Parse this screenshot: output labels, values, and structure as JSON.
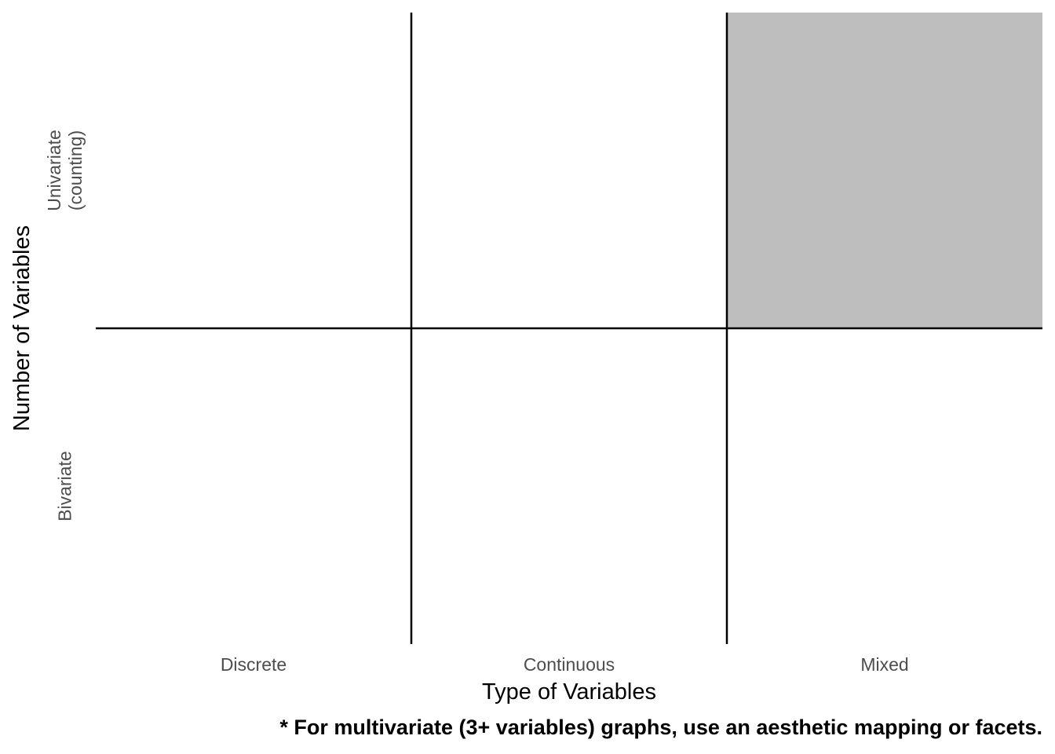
{
  "chart_data": {
    "type": "table",
    "columns": [
      "Discrete",
      "Continuous",
      "Mixed"
    ],
    "rows": [
      {
        "label_lines": [
          "Univariate",
          "(counting)"
        ],
        "cells": [
          "",
          "",
          ""
        ]
      },
      {
        "label_lines": [
          "Bivariate"
        ],
        "cells": [
          "",
          "",
          ""
        ]
      }
    ],
    "shaded_cells": [
      [
        0,
        2
      ]
    ],
    "xlabel": "Type of Variables",
    "ylabel": "Number of Variables",
    "caption": "* For multivariate (3+ variables) graphs, use an aesthetic mapping or facets.",
    "grid": true
  },
  "colors": {
    "shaded_cell": "#bebebe",
    "grid_line": "#000000",
    "tick_text": "#4d4d4d",
    "title_text": "#000000"
  }
}
